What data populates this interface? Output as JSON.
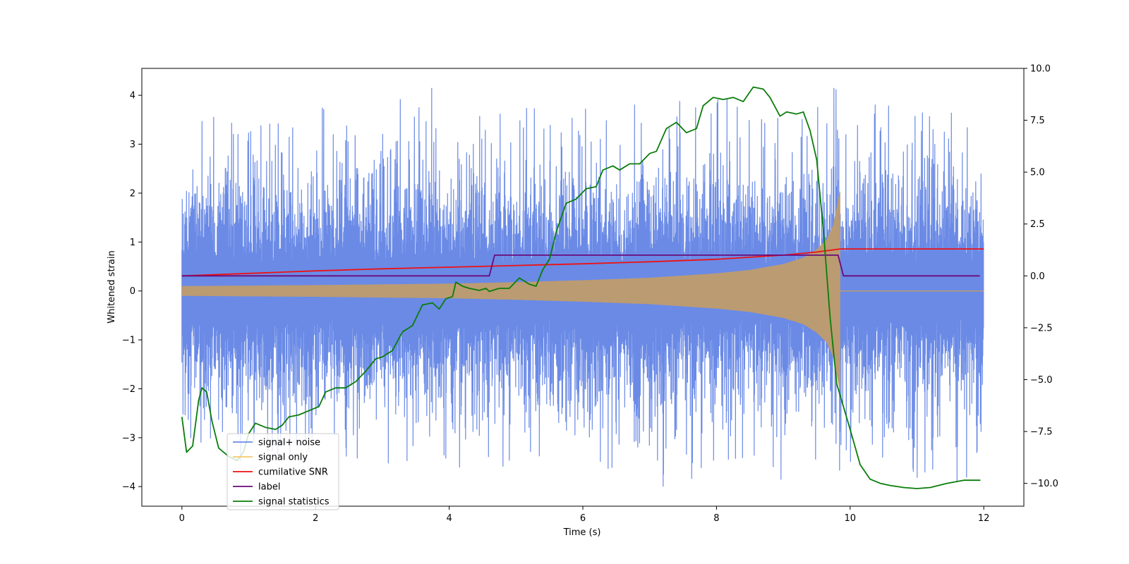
{
  "chart_data": {
    "type": "line",
    "title": "",
    "xlabel": "Time (s)",
    "ylabel": "Whitened strain",
    "y2label": "",
    "xlim": [
      -0.6,
      12.6
    ],
    "ylim": [
      -4.4,
      4.55
    ],
    "y2lim": [
      -11.1,
      10.0
    ],
    "xticks": [
      0,
      2,
      4,
      6,
      8,
      10,
      12
    ],
    "yticks": [
      -4,
      -3,
      -2,
      -1,
      0,
      1,
      2,
      3,
      4
    ],
    "y2ticks": [
      -10.0,
      -7.5,
      -5.0,
      -2.5,
      0.0,
      2.5,
      5.0,
      7.5,
      10.0
    ],
    "grid": false,
    "legend_position": "lower-left",
    "colors": {
      "signal_noise": "#6a8ae6",
      "signal_only": "#f6c86a",
      "signal_only_overlap": "#bb9b72",
      "snr": "#ee1111",
      "label": "#6a0a7a",
      "stats": "#0a7d0a"
    },
    "series": [
      {
        "name": "signal+ noise",
        "axis": "left",
        "kind": "noise",
        "x_range": [
          0,
          12
        ],
        "typical_amplitude": 1.55,
        "max_value": 4.15,
        "min_value": -4.0,
        "envelope_t": [
          0,
          2,
          4,
          6,
          8,
          9.5,
          9.8,
          9.85,
          12
        ],
        "envelope_top": [
          2.7,
          2.9,
          2.9,
          2.8,
          3.0,
          3.1,
          3.4,
          2.8,
          2.9
        ],
        "envelope_bottom": [
          -2.6,
          -2.7,
          -2.7,
          -2.7,
          -2.9,
          -2.9,
          -3.6,
          -2.9,
          -2.9
        ]
      },
      {
        "name": "signal only",
        "axis": "left",
        "kind": "chirp",
        "x_range": [
          0,
          12
        ],
        "end_time": 9.85,
        "envelope_t": [
          0,
          2,
          4,
          5,
          6,
          7,
          8,
          8.5,
          9.0,
          9.3,
          9.5,
          9.65,
          9.75,
          9.82,
          9.85
        ],
        "envelope": [
          0.1,
          0.12,
          0.15,
          0.18,
          0.22,
          0.27,
          0.36,
          0.43,
          0.55,
          0.68,
          0.85,
          1.05,
          1.35,
          1.85,
          2.05
        ]
      },
      {
        "name": "cumilative SNR",
        "axis": "right",
        "x": [
          0,
          1,
          2,
          3,
          4,
          5,
          6,
          7,
          8,
          9,
          9.5,
          9.85,
          10,
          12
        ],
        "y": [
          0.0,
          0.12,
          0.24,
          0.34,
          0.42,
          0.5,
          0.58,
          0.68,
          0.8,
          1.0,
          1.15,
          1.3,
          1.3,
          1.3
        ]
      },
      {
        "name": "label",
        "axis": "right",
        "x": [
          0,
          4.6,
          4.68,
          9.82,
          9.9,
          11.94
        ],
        "y": [
          0,
          0,
          1,
          1,
          0,
          0
        ]
      },
      {
        "name": "signal statistics",
        "axis": "right",
        "x": [
          0,
          0.07,
          0.16,
          0.25,
          0.3,
          0.37,
          0.45,
          0.55,
          0.7,
          0.83,
          0.92,
          1.0,
          1.1,
          1.25,
          1.4,
          1.5,
          1.6,
          1.75,
          1.9,
          2.05,
          2.15,
          2.3,
          2.45,
          2.6,
          2.75,
          2.9,
          3.0,
          3.15,
          3.3,
          3.45,
          3.6,
          3.75,
          3.85,
          3.95,
          4.05,
          4.1,
          4.2,
          4.3,
          4.45,
          4.55,
          4.6,
          4.75,
          4.9,
          5.05,
          5.2,
          5.3,
          5.4,
          5.5,
          5.6,
          5.75,
          5.9,
          6.05,
          6.2,
          6.3,
          6.45,
          6.55,
          6.7,
          6.85,
          7.0,
          7.1,
          7.25,
          7.4,
          7.55,
          7.7,
          7.8,
          7.95,
          8.1,
          8.25,
          8.4,
          8.55,
          8.7,
          8.8,
          8.95,
          9.05,
          9.2,
          9.3,
          9.4,
          9.5,
          9.6,
          9.7,
          9.8,
          9.9,
          10.0,
          10.15,
          10.3,
          10.45,
          10.6,
          10.8,
          11.0,
          11.2,
          11.45,
          11.7,
          11.95
        ],
        "y": [
          -6.8,
          -8.5,
          -8.2,
          -6.0,
          -5.4,
          -5.6,
          -7.0,
          -8.3,
          -8.7,
          -8.9,
          -8.5,
          -7.6,
          -7.1,
          -7.3,
          -7.4,
          -7.2,
          -6.8,
          -6.7,
          -6.5,
          -6.3,
          -5.6,
          -5.4,
          -5.4,
          -5.1,
          -4.6,
          -4.0,
          -3.9,
          -3.6,
          -2.7,
          -2.4,
          -1.4,
          -1.3,
          -1.6,
          -1.1,
          -1.0,
          -0.3,
          -0.5,
          -0.6,
          -0.7,
          -0.6,
          -0.75,
          -0.6,
          -0.6,
          -0.1,
          -0.4,
          -0.5,
          0.3,
          0.8,
          2.1,
          3.5,
          3.7,
          4.2,
          4.3,
          5.1,
          5.3,
          5.1,
          5.4,
          5.4,
          5.9,
          6.0,
          7.1,
          7.4,
          6.9,
          7.1,
          8.2,
          8.6,
          8.5,
          8.6,
          8.4,
          9.1,
          9.0,
          8.6,
          7.7,
          7.9,
          7.8,
          7.9,
          7.0,
          5.6,
          2.2,
          -2.0,
          -5.2,
          -6.3,
          -7.4,
          -9.1,
          -9.8,
          -10.0,
          -10.1,
          -10.2,
          -10.25,
          -10.2,
          -10.0,
          -9.85,
          -9.85
        ]
      }
    ],
    "legend": [
      {
        "label": "signal+ noise",
        "color": "#6a8ae6"
      },
      {
        "label": "signal only",
        "color": "#f6c86a"
      },
      {
        "label": "cumilative SNR",
        "color": "#ee1111"
      },
      {
        "label": "label",
        "color": "#6a0a7a"
      },
      {
        "label": "signal statistics",
        "color": "#0a7d0a"
      }
    ]
  }
}
